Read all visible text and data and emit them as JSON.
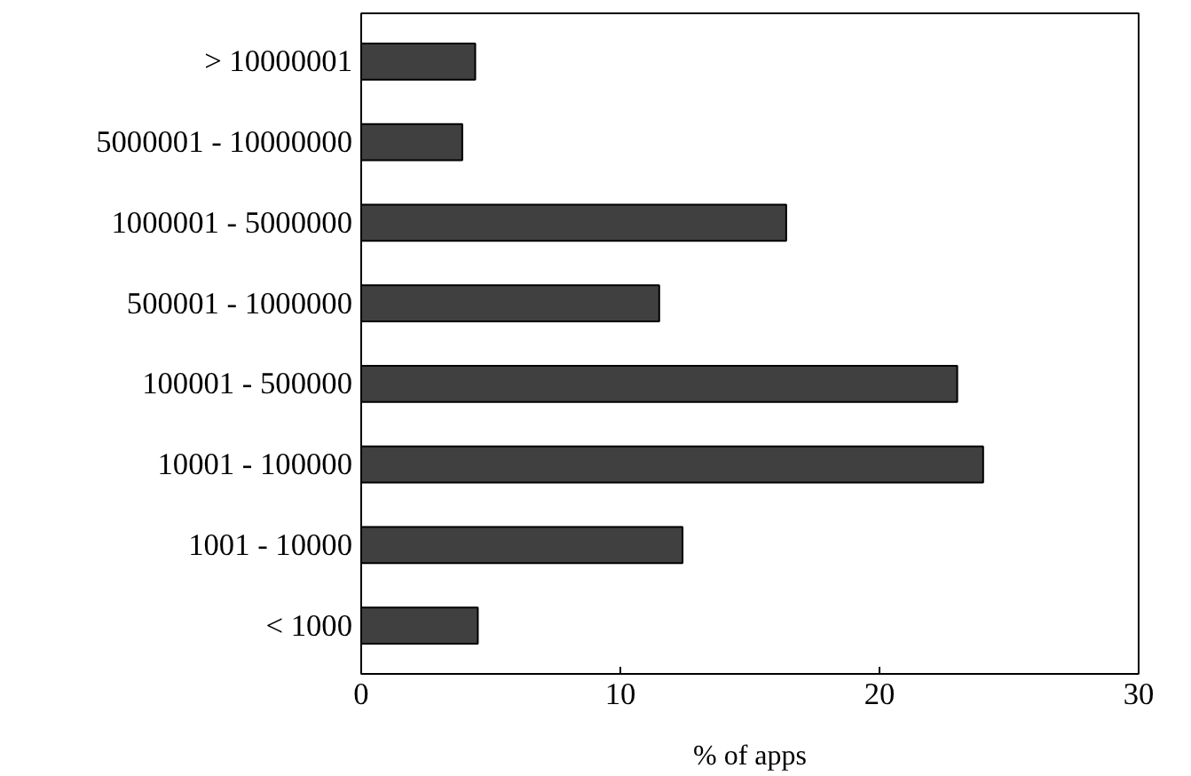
{
  "chart_data": {
    "type": "bar",
    "orientation": "horizontal",
    "xlabel": "% of apps",
    "categories": [
      "> 10000001",
      "5000001 - 10000000",
      "1000001 - 5000000",
      "500001 - 1000000",
      "100001 - 500000",
      "10001 - 100000",
      "1001 - 10000",
      "< 1000"
    ],
    "values": [
      4.4,
      3.9,
      16.4,
      11.5,
      23.0,
      24.0,
      12.4,
      4.5
    ],
    "color": "#404040",
    "xlim": [
      0,
      30
    ],
    "xticks": [
      0,
      10,
      20,
      30
    ],
    "grid": false
  }
}
